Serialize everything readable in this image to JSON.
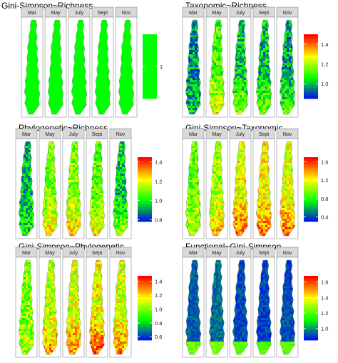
{
  "chart_data": [
    {
      "type": "heatmap",
      "title": "Gini-Simpson~Richness",
      "facets": [
        "Mar",
        "May",
        "July",
        "Sept",
        "Nov"
      ],
      "legend_ticks": [
        "1"
      ],
      "scale_range": [
        0.999,
        1.001
      ],
      "values": [
        1,
        1,
        1,
        1,
        1
      ],
      "colors": [
        "#00ff00"
      ]
    },
    {
      "type": "heatmap",
      "title": "Taxonomic~Richness",
      "facets": [
        "Mar",
        "May",
        "July",
        "Sept",
        "Nov"
      ],
      "legend_ticks": [
        "1.4",
        "1.2",
        "1.0"
      ],
      "scale_range": [
        0.85,
        1.5
      ],
      "values": [
        0.97,
        1.12,
        1.03,
        1.02,
        0.98
      ],
      "colors": [
        "#0000ff",
        "#00ff00",
        "#ffff00",
        "#ff0000"
      ]
    },
    {
      "type": "heatmap",
      "title": "Phylogenetic~Richness",
      "facets": [
        "Mar",
        "May",
        "July",
        "Sept",
        "Nov"
      ],
      "legend_ticks": [
        "1.4",
        "1.2",
        "1.0",
        "0.8"
      ],
      "scale_range": [
        0.78,
        1.45
      ],
      "values": [
        0.95,
        1.1,
        1.12,
        1.08,
        0.97
      ],
      "colors": [
        "#0000ff",
        "#00ff00",
        "#ffff00",
        "#ff0000"
      ]
    },
    {
      "type": "heatmap",
      "title": "Gini-Simpson~Taxonomic",
      "facets": [
        "Mar",
        "May",
        "July",
        "Sept",
        "Nov"
      ],
      "legend_ticks": [
        "1.6",
        "1.2",
        "0.8",
        "0.4"
      ],
      "scale_range": [
        0.3,
        1.7
      ],
      "values": [
        0.95,
        1.05,
        1.2,
        1.2,
        1.18
      ],
      "colors": [
        "#0000ff",
        "#00ff00",
        "#ffff00",
        "#ff0000"
      ]
    },
    {
      "type": "heatmap",
      "title": "Gini-Simpson~Phylogenetic",
      "facets": [
        "Mar",
        "May",
        "July",
        "Sept",
        "Nov"
      ],
      "legend_ticks": [
        "1.4",
        "1.2",
        "1.0",
        "0.8",
        "0.6"
      ],
      "scale_range": [
        0.55,
        1.48
      ],
      "values": [
        1.0,
        1.08,
        1.12,
        1.15,
        1.1
      ],
      "colors": [
        "#0000ff",
        "#00ff00",
        "#ffff00",
        "#ff0000"
      ]
    },
    {
      "type": "heatmap",
      "title": "Functional~Gini-Simpson",
      "facets": [
        "Mar",
        "May",
        "July",
        "Sept",
        "Nov"
      ],
      "legend_ticks": [
        "1.6",
        "1.4",
        "1.2",
        "1.0"
      ],
      "scale_range": [
        0.85,
        1.68
      ],
      "values": [
        0.95,
        0.97,
        0.93,
        0.92,
        0.93
      ],
      "colors": [
        "#0000ff",
        "#00ff00",
        "#ffff00",
        "#ff0000"
      ]
    }
  ]
}
